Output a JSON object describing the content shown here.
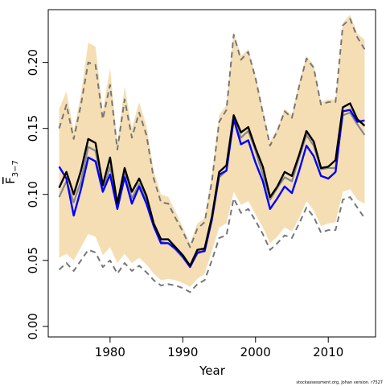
{
  "chart_data": {
    "type": "line",
    "xlabel": "Year",
    "ylabel": "F",
    "ylabel_sub": "3−7",
    "credit": "stockassessment.org, Johan  version. r7527",
    "xlim": [
      1971.5,
      2016.5
    ],
    "ylim": [
      -0.008,
      0.24
    ],
    "x_ticks": [
      1980,
      1990,
      2000,
      2010
    ],
    "x_tick_labels": [
      "1980",
      "1990",
      "2000",
      "2010"
    ],
    "y_ticks": [
      0.0,
      0.05,
      0.1,
      0.15,
      0.2
    ],
    "y_tick_labels": [
      "0.00",
      "0.05",
      "0.10",
      "0.15",
      "0.20"
    ],
    "grid": false,
    "legend": "none",
    "colors": {
      "band": "#f5deb3",
      "estimate": "#000000",
      "estimate_alt": "#0000ff",
      "estimate_ghost": "#888888",
      "bounds": "#777777"
    },
    "x": [
      1973,
      1974,
      1975,
      1976,
      1977,
      1978,
      1979,
      1980,
      1981,
      1982,
      1983,
      1984,
      1985,
      1986,
      1987,
      1988,
      1989,
      1990,
      1991,
      1992,
      1993,
      1994,
      1995,
      1996,
      1997,
      1998,
      1999,
      2000,
      2001,
      2002,
      2003,
      2004,
      2005,
      2006,
      2007,
      2008,
      2009,
      2010,
      2011,
      2012,
      2013,
      2014,
      2015
    ],
    "series": [
      {
        "role": "band-upper",
        "values": [
          0.165,
          0.178,
          0.148,
          0.176,
          0.215,
          0.212,
          0.163,
          0.196,
          0.138,
          0.182,
          0.15,
          0.17,
          0.152,
          0.118,
          0.1,
          0.098,
          0.087,
          0.075,
          0.063,
          0.078,
          0.082,
          0.115,
          0.16,
          0.168,
          0.223,
          0.205,
          0.21,
          0.19,
          0.165,
          0.14,
          0.15,
          0.165,
          0.16,
          0.185,
          0.205,
          0.198,
          0.17,
          0.172,
          0.172,
          0.23,
          0.236,
          0.222,
          0.217
        ]
      },
      {
        "role": "band-lower",
        "values": [
          0.052,
          0.055,
          0.05,
          0.06,
          0.07,
          0.068,
          0.054,
          0.06,
          0.048,
          0.055,
          0.048,
          0.052,
          0.047,
          0.04,
          0.035,
          0.036,
          0.035,
          0.033,
          0.03,
          0.036,
          0.04,
          0.057,
          0.075,
          0.078,
          0.102,
          0.092,
          0.095,
          0.085,
          0.075,
          0.063,
          0.068,
          0.075,
          0.072,
          0.082,
          0.095,
          0.088,
          0.076,
          0.078,
          0.079,
          0.102,
          0.104,
          0.096,
          0.093
        ]
      },
      {
        "role": "upper-bound-dashed",
        "values": [
          0.15,
          0.168,
          0.142,
          0.168,
          0.2,
          0.198,
          0.157,
          0.183,
          0.134,
          0.172,
          0.143,
          0.162,
          0.145,
          0.112,
          0.094,
          0.093,
          0.082,
          0.072,
          0.06,
          0.074,
          0.079,
          0.11,
          0.155,
          0.164,
          0.221,
          0.202,
          0.208,
          0.188,
          0.162,
          0.137,
          0.148,
          0.163,
          0.158,
          0.182,
          0.203,
          0.196,
          0.168,
          0.17,
          0.17,
          0.228,
          0.233,
          0.219,
          0.21
        ]
      },
      {
        "role": "lower-bound-dashed",
        "values": [
          0.043,
          0.048,
          0.042,
          0.05,
          0.058,
          0.056,
          0.045,
          0.05,
          0.04,
          0.048,
          0.042,
          0.046,
          0.041,
          0.035,
          0.031,
          0.032,
          0.031,
          0.029,
          0.026,
          0.032,
          0.035,
          0.05,
          0.067,
          0.069,
          0.097,
          0.086,
          0.089,
          0.08,
          0.07,
          0.058,
          0.063,
          0.069,
          0.067,
          0.078,
          0.09,
          0.083,
          0.071,
          0.073,
          0.073,
          0.096,
          0.098,
          0.09,
          0.082
        ]
      },
      {
        "role": "estimate-ghost",
        "values": [
          0.098,
          0.11,
          0.094,
          0.11,
          0.136,
          0.133,
          0.103,
          0.121,
          0.09,
          0.116,
          0.097,
          0.108,
          0.096,
          0.076,
          0.064,
          0.063,
          0.058,
          0.052,
          0.045,
          0.055,
          0.058,
          0.081,
          0.113,
          0.118,
          0.157,
          0.143,
          0.148,
          0.133,
          0.115,
          0.096,
          0.105,
          0.113,
          0.11,
          0.128,
          0.145,
          0.137,
          0.119,
          0.12,
          0.12,
          0.16,
          0.162,
          0.153,
          0.145
        ]
      },
      {
        "role": "estimate-alt",
        "values": [
          0.121,
          0.112,
          0.084,
          0.104,
          0.128,
          0.125,
          0.102,
          0.115,
          0.089,
          0.113,
          0.093,
          0.106,
          0.093,
          0.076,
          0.063,
          0.063,
          0.059,
          0.053,
          0.045,
          0.056,
          0.057,
          0.081,
          0.115,
          0.118,
          0.157,
          0.138,
          0.141,
          0.124,
          0.11,
          0.089,
          0.097,
          0.106,
          0.101,
          0.118,
          0.137,
          0.129,
          0.114,
          0.112,
          0.117,
          0.163,
          0.164,
          0.155,
          0.156
        ]
      },
      {
        "role": "estimate",
        "values": [
          0.105,
          0.117,
          0.1,
          0.118,
          0.142,
          0.139,
          0.107,
          0.128,
          0.093,
          0.12,
          0.102,
          0.112,
          0.099,
          0.078,
          0.066,
          0.066,
          0.06,
          0.054,
          0.046,
          0.058,
          0.059,
          0.083,
          0.117,
          0.122,
          0.16,
          0.147,
          0.151,
          0.135,
          0.121,
          0.098,
          0.106,
          0.117,
          0.114,
          0.13,
          0.148,
          0.14,
          0.12,
          0.121,
          0.126,
          0.166,
          0.169,
          0.157,
          0.152
        ]
      }
    ]
  }
}
